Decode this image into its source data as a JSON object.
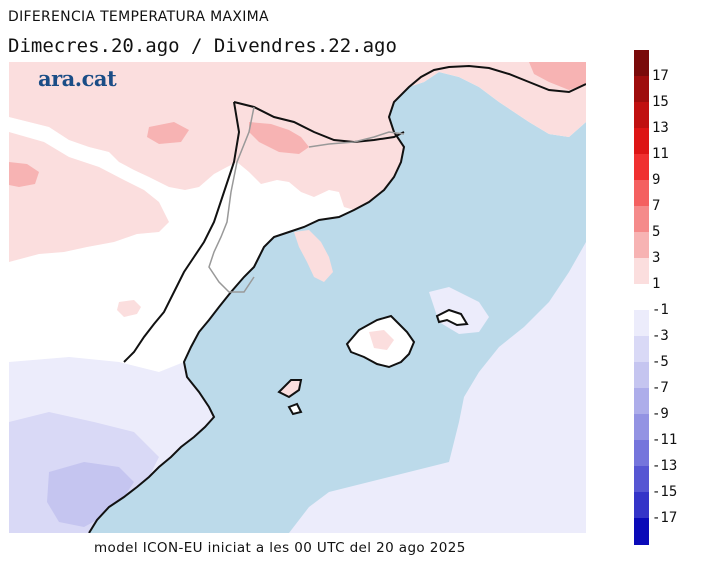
{
  "header": {
    "title": "DIFERENCIA TEMPERATURA MAXIMA",
    "subtitle": "Dimecres.20.ago / Divendres.22.ago"
  },
  "logo": {
    "text": "ara.cat",
    "color": "#1b4d86"
  },
  "footer": {
    "text": "model ICON-EU iniciat a les 00 UTC del 20 ago 2025"
  },
  "legend": {
    "labels": [
      "17",
      "15",
      "13",
      "11",
      "9",
      "7",
      "5",
      "3",
      "1",
      "-1",
      "-3",
      "-5",
      "-7",
      "-9",
      "-11",
      "-13",
      "-15",
      "-17"
    ],
    "colors": [
      "#7a0a0a",
      "#9e0d0d",
      "#c01010",
      "#dd1515",
      "#f03030",
      "#f46060",
      "#f58a8a",
      "#f7b3b3",
      "#fbdede",
      "#ffffff",
      "#ececfb",
      "#d9d9f6",
      "#c5c5f0",
      "#adadea",
      "#9393e3",
      "#7575dc",
      "#5656d3",
      "#3434c8",
      "#0a0ab8"
    ]
  },
  "map": {
    "colors": {
      "sea": "#bcdaea",
      "warm1": "#fbdede",
      "warm2": "#f7b3b3",
      "warm3": "#f58a8a",
      "cool1": "#ececfb",
      "cool2": "#d9d9f6",
      "cool3": "#c5c5f0",
      "coast": "#111111",
      "border": "#999999"
    }
  }
}
